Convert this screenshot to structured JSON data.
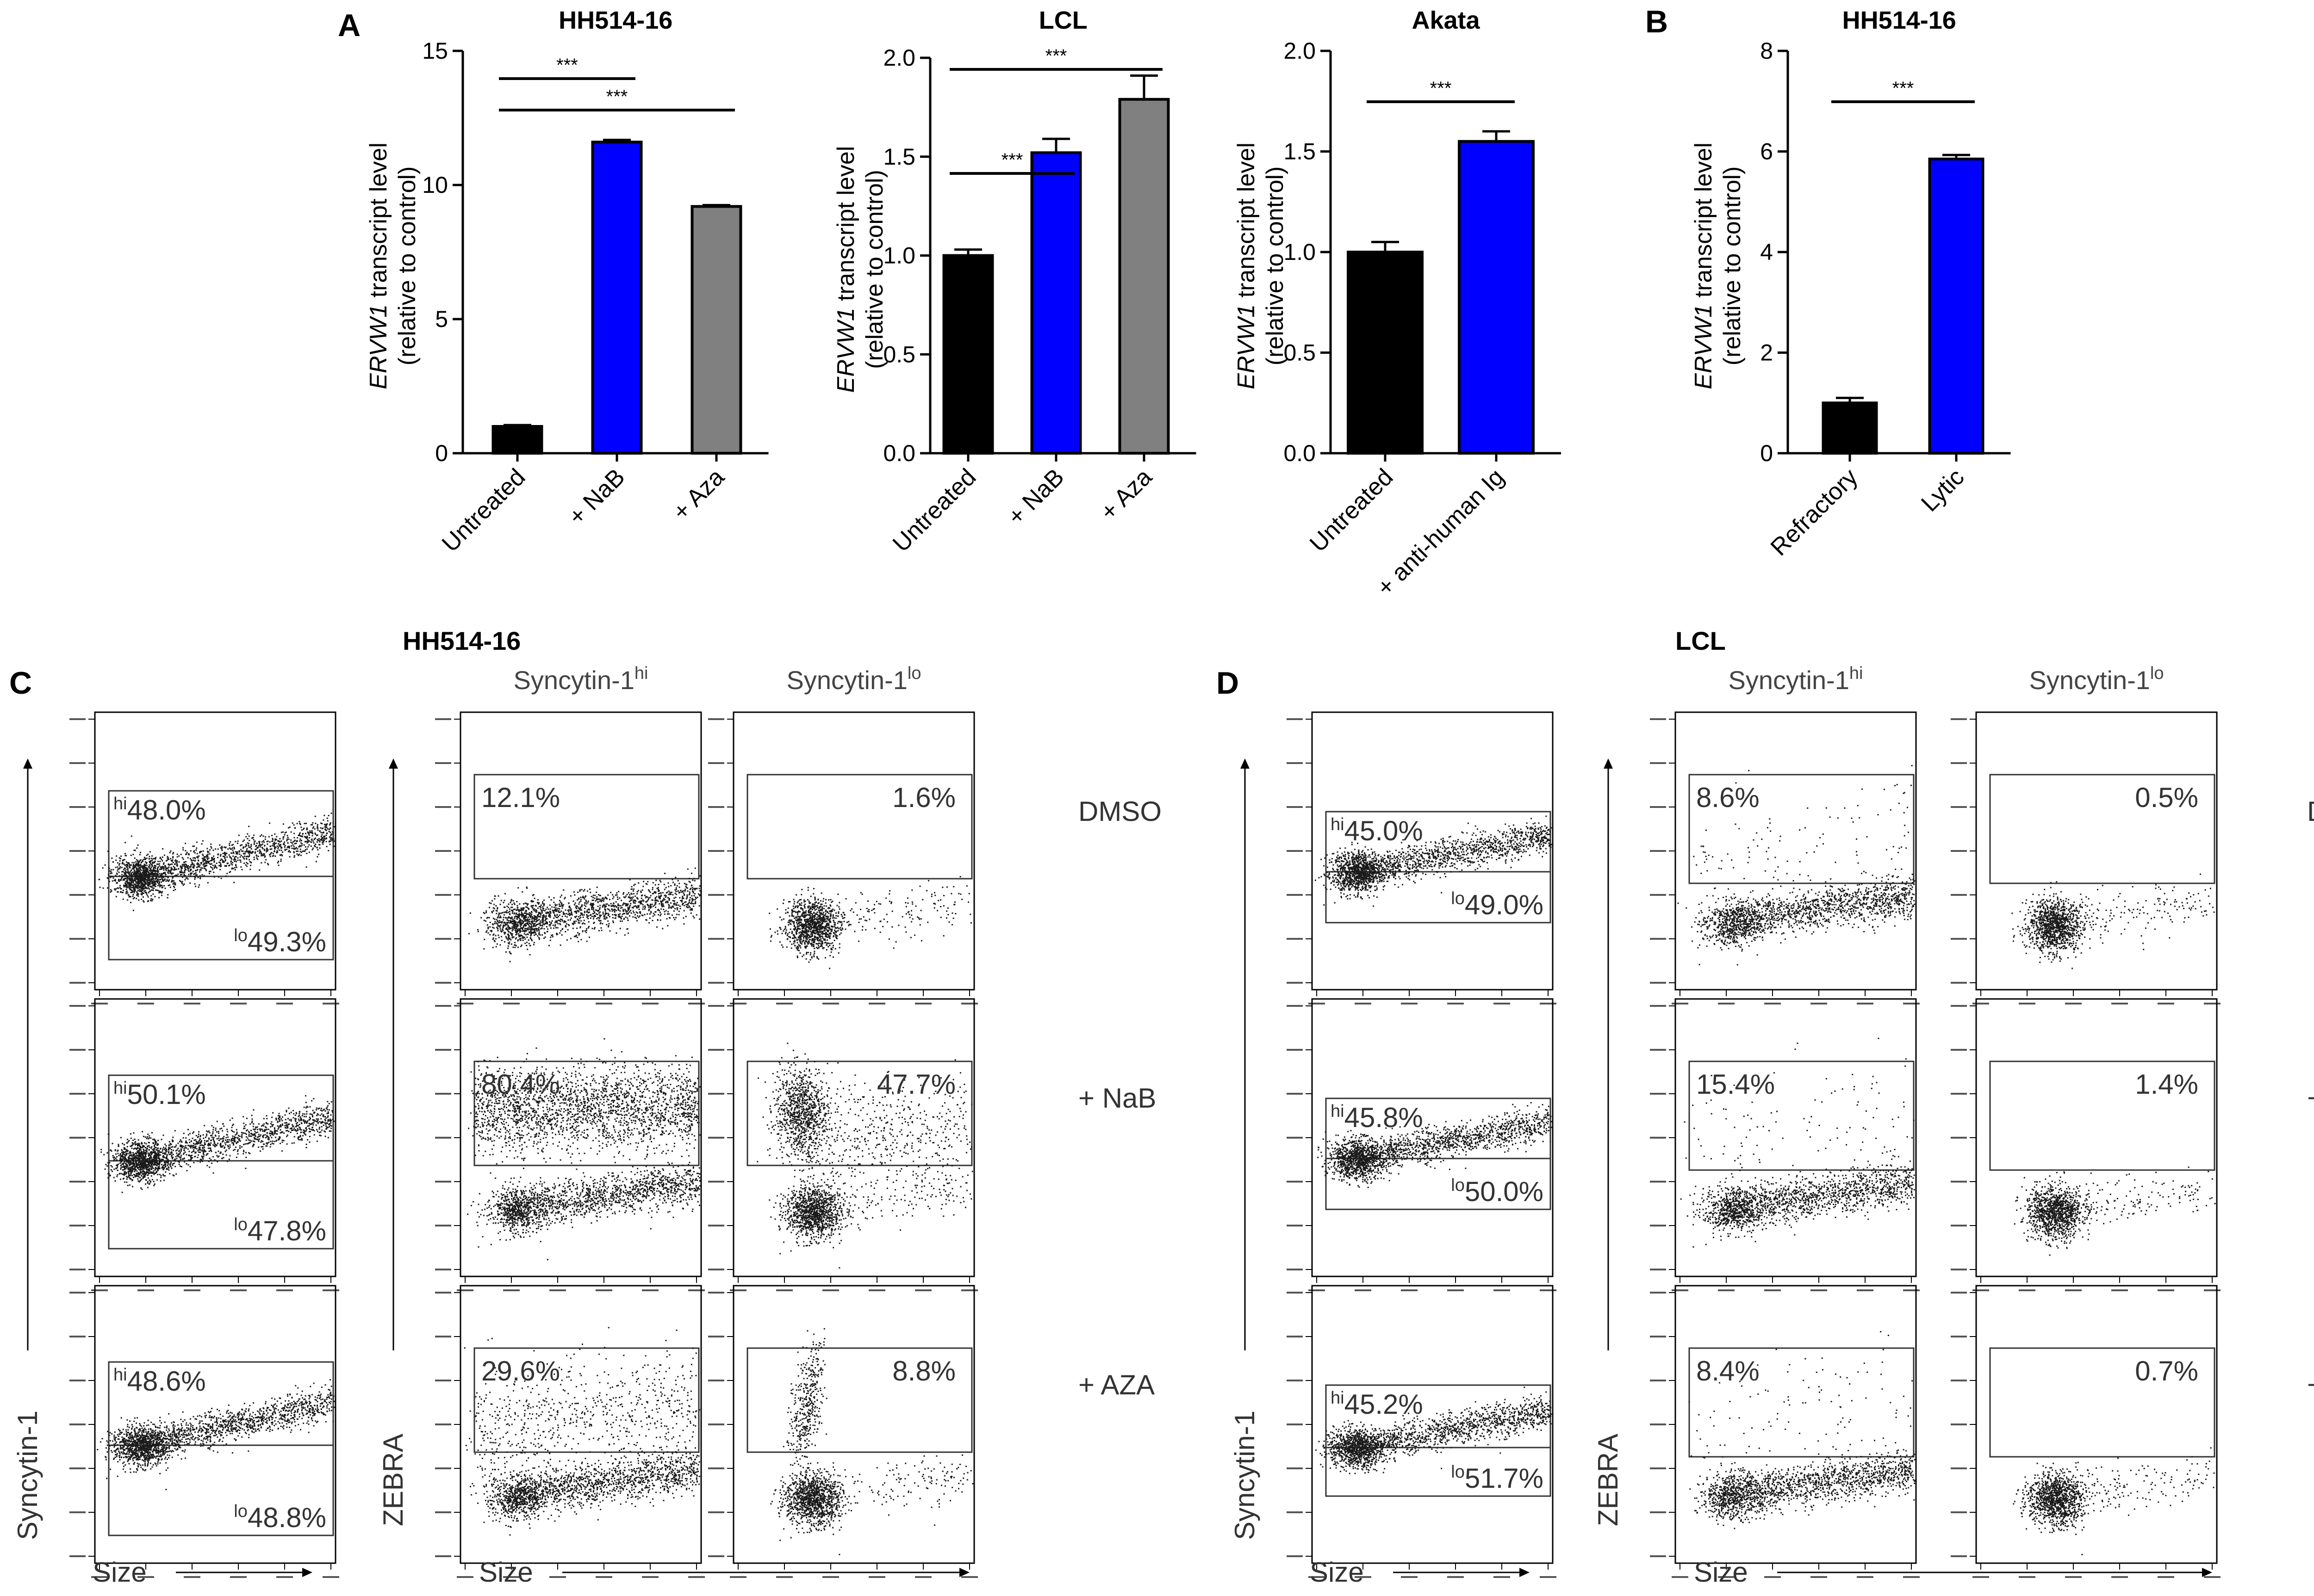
{
  "colors": {
    "black": "#000000",
    "blue": "#0000ff",
    "gray": "#808080",
    "dot": "#1a1a1a",
    "gate": "#333333"
  },
  "panel_labels": {
    "A": "A",
    "B": "B",
    "C": "C",
    "D": "D"
  },
  "y_label_gene": "ERVW1",
  "y_label_rest": " transcript level",
  "y_label_line2": "(relative to control)",
  "chart_data": [
    {
      "id": "A1",
      "type": "bar",
      "title": "HH514-16",
      "categories": [
        "Untreated",
        "+ NaB",
        "+ Aza"
      ],
      "values": [
        1.0,
        11.6,
        9.2
      ],
      "errors": [
        0.05,
        0.08,
        0.05
      ],
      "colors": [
        "#000000",
        "#0000ff",
        "#808080"
      ],
      "ylim": [
        0,
        15
      ],
      "yticks": [
        "0",
        "5",
        "10",
        "15"
      ],
      "ylabel": "ERVW1 transcript level (relative to control)",
      "sig": [
        {
          "from": 0,
          "to": 1,
          "label": "***"
        },
        {
          "from": 0,
          "to": 2,
          "label": "***"
        }
      ]
    },
    {
      "id": "A2",
      "type": "bar",
      "title": "LCL",
      "categories": [
        "Untreated",
        "+ NaB",
        "+ Aza"
      ],
      "values": [
        1.0,
        1.52,
        1.79
      ],
      "errors": [
        0.03,
        0.07,
        0.12
      ],
      "colors": [
        "#000000",
        "#0000ff",
        "#808080"
      ],
      "ylim": [
        0,
        2.0
      ],
      "yticks": [
        "0.0",
        "0.5",
        "1.0",
        "1.5",
        "2.0"
      ],
      "ylabel": "ERVW1 transcript level (relative to control)",
      "sig": [
        {
          "from": 0,
          "to": 1,
          "label": "***"
        },
        {
          "from": 0,
          "to": 2,
          "label": "***"
        }
      ]
    },
    {
      "id": "A3",
      "type": "bar",
      "title": "Akata",
      "categories": [
        "Untreated",
        "+ anti-human Ig"
      ],
      "values": [
        1.0,
        1.55
      ],
      "errors": [
        0.05,
        0.05
      ],
      "colors": [
        "#000000",
        "#0000ff"
      ],
      "ylim": [
        0,
        2.0
      ],
      "yticks": [
        "0.0",
        "0.5",
        "1.0",
        "1.5",
        "2.0"
      ],
      "ylabel": "ERVW1 transcript level (relative to control)",
      "sig": [
        {
          "from": 0,
          "to": 1,
          "label": "***"
        }
      ]
    },
    {
      "id": "B",
      "type": "bar",
      "title": "HH514-16",
      "categories": [
        "Refractory",
        "Lytic"
      ],
      "values": [
        1.0,
        5.85
      ],
      "errors": [
        0.1,
        0.08
      ],
      "colors": [
        "#000000",
        "#0000ff"
      ],
      "ylim": [
        0,
        8
      ],
      "yticks": [
        "0",
        "2",
        "4",
        "6",
        "8"
      ],
      "ylabel": "ERVW1 transcript level (relative to control)",
      "sig": [
        {
          "from": 0,
          "to": 1,
          "label": "***"
        }
      ]
    },
    {
      "id": "C",
      "type": "scatter",
      "title": "HH514-16",
      "x_label": "Size",
      "y_left_label": "Syncytin-1",
      "y_right_label": "ZEBRA",
      "col_headers": [
        {
          "base": "Syncytin-1",
          "sup": "hi"
        },
        {
          "base": "Syncytin-1",
          "sup": "lo"
        }
      ],
      "rows": [
        {
          "label": "DMSO",
          "hi": "48.0%",
          "lo": "49.3%",
          "zhi": "12.1%",
          "zlo": "1.6%"
        },
        {
          "label": "+ NaB",
          "hi": "50.1%",
          "lo": "47.8%",
          "zhi": "80.4%",
          "zlo": "47.7%"
        },
        {
          "label": "+ AZA",
          "hi": "48.6%",
          "lo": "48.8%",
          "zhi": "29.6%",
          "zlo": "8.8%"
        }
      ]
    },
    {
      "id": "D",
      "type": "scatter",
      "title": "LCL",
      "x_label": "Size",
      "y_left_label": "Syncytin-1",
      "y_right_label": "ZEBRA",
      "col_headers": [
        {
          "base": "Syncytin-1",
          "sup": "hi"
        },
        {
          "base": "Syncytin-1",
          "sup": "lo"
        }
      ],
      "rows": [
        {
          "label": "DMSO",
          "hi": "45.0%",
          "lo": "49.0%",
          "zhi": "8.6%",
          "zlo": "0.5%"
        },
        {
          "label": "+ NaB",
          "hi": "45.8%",
          "lo": "50.0%",
          "zhi": "15.4%",
          "zlo": "1.4%"
        },
        {
          "label": "+ AZA",
          "hi": "45.2%",
          "lo": "51.7%",
          "zhi": "8.4%",
          "zlo": "0.7%"
        }
      ]
    }
  ]
}
